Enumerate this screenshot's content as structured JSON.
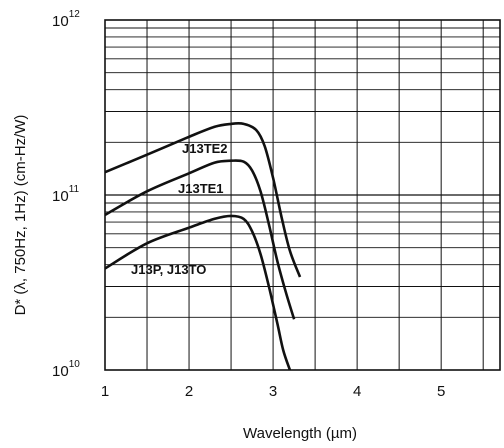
{
  "chart_data": {
    "type": "line",
    "xlabel": "Wavelength (µm)",
    "ylabel": "D* (λ, 750Hz, 1Hz) (cm-Hz/W)",
    "xlim": [
      1,
      5.7
    ],
    "ylim": [
      10000000000.0,
      1000000000000.0
    ],
    "y_scale": "log",
    "grid": true,
    "x_ticks": [
      {
        "value": 1,
        "label": "1"
      },
      {
        "value": 2,
        "label": "2"
      },
      {
        "value": 3,
        "label": "3"
      },
      {
        "value": 4,
        "label": "4"
      },
      {
        "value": 5,
        "label": "5"
      }
    ],
    "y_ticks": [
      {
        "value": 10000000000.0,
        "base": "10",
        "exp": "10"
      },
      {
        "value": 100000000000.0,
        "base": "10",
        "exp": "11"
      },
      {
        "value": 1000000000000.0,
        "base": "10",
        "exp": "12"
      }
    ],
    "line_color": "#111111",
    "series": [
      {
        "name": "J13TE2",
        "x": [
          1.0,
          1.5,
          2.0,
          2.3,
          2.5,
          2.65,
          2.8,
          2.9,
          3.0,
          3.1,
          3.2,
          3.32
        ],
        "y": [
          135000000000.0,
          170000000000.0,
          215000000000.0,
          245000000000.0,
          255000000000.0,
          255000000000.0,
          235000000000.0,
          190000000000.0,
          125000000000.0,
          75000000000.0,
          48000000000.0,
          34000000000.0
        ]
      },
      {
        "name": "J13TE1",
        "x": [
          1.0,
          1.5,
          2.0,
          2.3,
          2.5,
          2.65,
          2.75,
          2.85,
          2.95,
          3.05,
          3.15,
          3.25
        ],
        "y": [
          77000000000.0,
          105000000000.0,
          133000000000.0,
          153000000000.0,
          157000000000.0,
          155000000000.0,
          138000000000.0,
          105000000000.0,
          68000000000.0,
          42000000000.0,
          28000000000.0,
          19500000000.0
        ]
      },
      {
        "name": "J13P, J13TO",
        "x": [
          1.0,
          1.5,
          2.0,
          2.3,
          2.5,
          2.65,
          2.75,
          2.85,
          2.95,
          3.05,
          3.12,
          3.2
        ],
        "y": [
          38000000000.0,
          53000000000.0,
          65000000000.0,
          73000000000.0,
          76000000000.0,
          73000000000.0,
          62000000000.0,
          46000000000.0,
          30000000000.0,
          18500000000.0,
          13000000000.0,
          10000000000.0
        ]
      }
    ],
    "annotations": [
      "J13TE2",
      "J13TE1",
      "J13P, J13TO"
    ]
  }
}
